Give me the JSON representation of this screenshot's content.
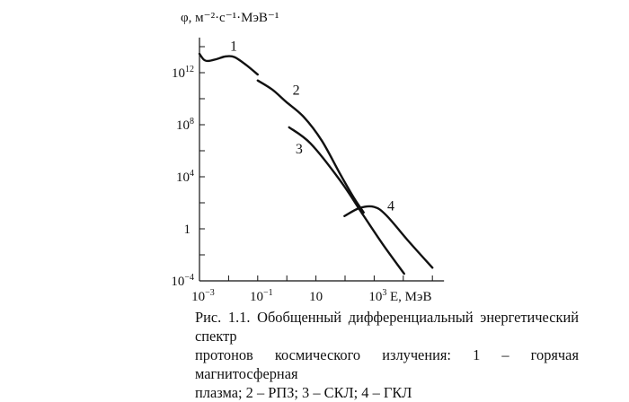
{
  "chart_data": {
    "type": "line",
    "title": "",
    "ylabel": "φ, м⁻²·с⁻¹·МэВ⁻¹",
    "xlabel": "E, МэВ",
    "x_scale": "log",
    "y_scale": "log",
    "xlim_log10": [
      -3,
      5.4
    ],
    "ylim_log10": [
      -4,
      14.7
    ],
    "x_ticks_log10": [
      -3,
      -2,
      -1,
      0,
      1,
      2,
      3,
      4,
      5
    ],
    "x_tick_labels": [
      {
        "log10": -3,
        "base": "10",
        "exp": "−3"
      },
      {
        "log10": -1,
        "base": "10",
        "exp": "−1"
      },
      {
        "log10": 1,
        "base": "10",
        "exp": ""
      },
      {
        "log10": 3,
        "base": "10",
        "exp": "3"
      }
    ],
    "y_ticks_log10": [
      -4,
      -2,
      0,
      2,
      4,
      6,
      8,
      10,
      12,
      14
    ],
    "y_tick_labels": [
      {
        "log10": 12,
        "base": "10",
        "exp": "12"
      },
      {
        "log10": 8,
        "base": "10",
        "exp": "8"
      },
      {
        "log10": 4,
        "base": "10",
        "exp": "4"
      },
      {
        "log10": 0,
        "base": "1",
        "exp": ""
      },
      {
        "log10": -4,
        "base": "10",
        "exp": "−4"
      }
    ],
    "grid": false,
    "series": [
      {
        "name": "1",
        "x_log10": [
          -3,
          -2.85,
          -2.7,
          -2.4,
          -2.1,
          -1.8,
          -1.4,
          -1.0
        ],
        "y_log10": [
          13.45,
          13.0,
          12.9,
          13.05,
          13.25,
          13.2,
          12.6,
          11.86
        ],
        "label_pos": [
          -1.95,
          13.7
        ]
      },
      {
        "name": "2",
        "x_log10": [
          -1.0,
          -0.5,
          -0.03,
          0.58,
          1.2,
          1.82,
          2.3,
          2.64
        ],
        "y_log10": [
          11.4,
          10.7,
          9.77,
          8.6,
          6.78,
          4.26,
          2.4,
          1.26
        ],
        "label_pos": [
          0.2,
          10.3
        ]
      },
      {
        "name": "3",
        "x_log10": [
          0.08,
          0.82,
          1.82,
          2.64,
          3.3,
          4.03
        ],
        "y_log10": [
          7.8,
          6.55,
          3.75,
          1.0,
          -1.2,
          -3.45
        ],
        "label_pos": [
          0.3,
          5.8
        ]
      },
      {
        "name": "4",
        "x_log10": [
          1.98,
          2.5,
          3.0,
          3.42,
          4.2,
          5.0
        ],
        "y_log10": [
          0.98,
          1.6,
          1.68,
          1.03,
          -1.0,
          -2.99
        ],
        "label_pos": [
          3.45,
          1.4
        ]
      }
    ]
  },
  "caption": {
    "lines": [
      "Рис. 1.1. Обобщенный дифференциальный энергетический спектр",
      "протонов космического излучения: 1 – горячая магнитосферная",
      "плазма; 2 – РПЗ; 3 – СКЛ; 4 – ГКЛ"
    ]
  }
}
